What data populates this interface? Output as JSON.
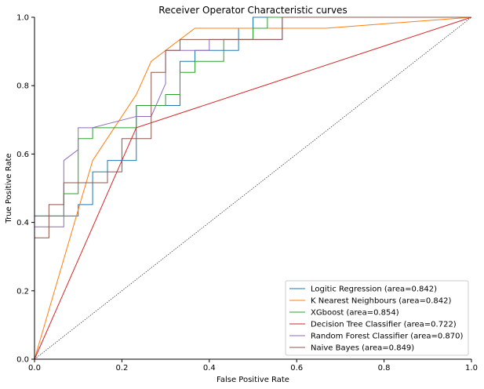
{
  "chart_data": {
    "type": "line",
    "title": "Receiver Operator Characteristic curves",
    "xlabel": "False Positive Rate",
    "ylabel": "True Positive Rate",
    "xlim": [
      0,
      1
    ],
    "ylim": [
      0,
      1
    ],
    "xticks": [
      "0.0",
      "0.2",
      "0.4",
      "0.6",
      "0.8",
      "1.0"
    ],
    "yticks": [
      "0.0",
      "0.2",
      "0.4",
      "0.6",
      "0.8",
      "1.0"
    ],
    "grid": false,
    "legend_position": "lower-right",
    "diagonal_reference": true,
    "colors": {
      "diagonal": "#000000",
      "axis": "#000000"
    },
    "series": [
      {
        "name": "Logitic Regression (area=0.842)",
        "color": "#1f77b4",
        "x": [
          0,
          0,
          0.1,
          0.1,
          0.133,
          0.133,
          0.167,
          0.167,
          0.233,
          0.233,
          0.3,
          0.3,
          0.333,
          0.333,
          0.367,
          0.367,
          0.467,
          0.467,
          0.5,
          0.5,
          0.533,
          0.533,
          1.0
        ],
        "y": [
          0,
          0.419,
          0.419,
          0.452,
          0.452,
          0.548,
          0.548,
          0.581,
          0.581,
          0.742,
          0.742,
          0.742,
          0.742,
          0.871,
          0.871,
          0.903,
          0.903,
          0.968,
          0.968,
          1.0,
          1.0,
          1.0,
          1.0
        ]
      },
      {
        "name": "K Nearest Neighbours (area=0.842)",
        "color": "#ff7f0e",
        "x": [
          0,
          0.133,
          0.233,
          0.267,
          0.367,
          0.667,
          1.0
        ],
        "y": [
          0,
          0.581,
          0.774,
          0.871,
          0.968,
          0.968,
          1.0
        ]
      },
      {
        "name": "XGboost (area=0.854)",
        "color": "#2ca02c",
        "x": [
          0,
          0,
          0.067,
          0.067,
          0.1,
          0.1,
          0.133,
          0.133,
          0.233,
          0.233,
          0.3,
          0.3,
          0.333,
          0.333,
          0.367,
          0.367,
          0.433,
          0.433,
          0.5,
          0.5,
          0.533,
          0.533,
          1.0
        ],
        "y": [
          0,
          0.419,
          0.419,
          0.484,
          0.484,
          0.645,
          0.645,
          0.677,
          0.677,
          0.742,
          0.742,
          0.774,
          0.774,
          0.839,
          0.839,
          0.871,
          0.871,
          0.935,
          0.935,
          0.968,
          0.968,
          1.0,
          1.0
        ]
      },
      {
        "name": "Decision Tree Classifier  (area=0.722)",
        "color": "#d62728",
        "x": [
          0,
          0.233,
          1.0
        ],
        "y": [
          0,
          0.677,
          1.0
        ]
      },
      {
        "name": "Random Forest Classifier  (area=0.870)",
        "color": "#9467bd",
        "x": [
          0,
          0,
          0.067,
          0.067,
          0.1,
          0.1,
          0.133,
          0.133,
          0.233,
          0.233,
          0.267,
          0.3,
          0.3,
          0.4,
          0.4,
          0.567,
          0.567,
          1.0
        ],
        "y": [
          0,
          0.387,
          0.387,
          0.581,
          0.613,
          0.677,
          0.677,
          0.677,
          0.71,
          0.71,
          0.71,
          0.806,
          0.903,
          0.903,
          0.935,
          0.935,
          1.0,
          1.0
        ]
      },
      {
        "name": "Naive Bayes (area=0.849)",
        "color": "#8c564b",
        "x": [
          0,
          0,
          0.033,
          0.033,
          0.067,
          0.067,
          0.167,
          0.167,
          0.2,
          0.2,
          0.267,
          0.267,
          0.3,
          0.3,
          0.333,
          0.333,
          0.567,
          0.567,
          1.0
        ],
        "y": [
          0,
          0.355,
          0.355,
          0.452,
          0.452,
          0.516,
          0.516,
          0.548,
          0.548,
          0.645,
          0.645,
          0.839,
          0.839,
          0.903,
          0.903,
          0.935,
          0.935,
          1.0,
          1.0
        ]
      }
    ]
  }
}
